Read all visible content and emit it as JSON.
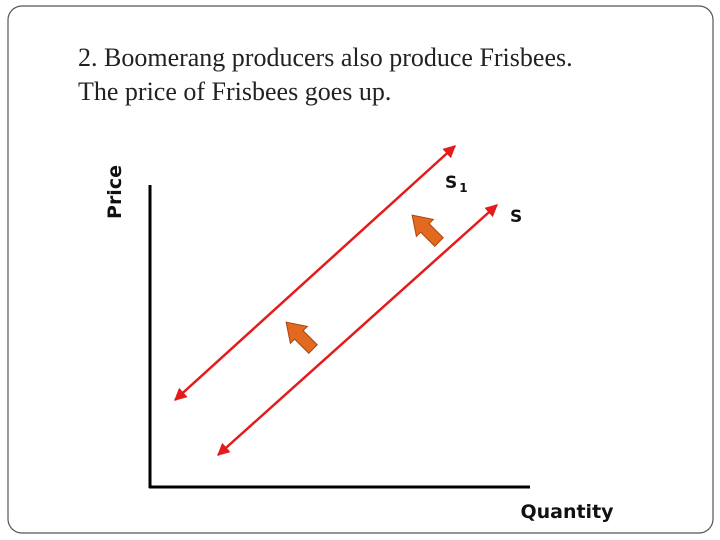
{
  "slide": {
    "title": [
      "2. Boomerang producers also produce Frisbees.",
      "The price of Frisbees goes up."
    ],
    "y_axis_label": "Price",
    "x_axis_label": "Quantity",
    "curves": [
      {
        "label": "S",
        "subscript": "1"
      },
      {
        "label": "S"
      }
    ]
  }
}
